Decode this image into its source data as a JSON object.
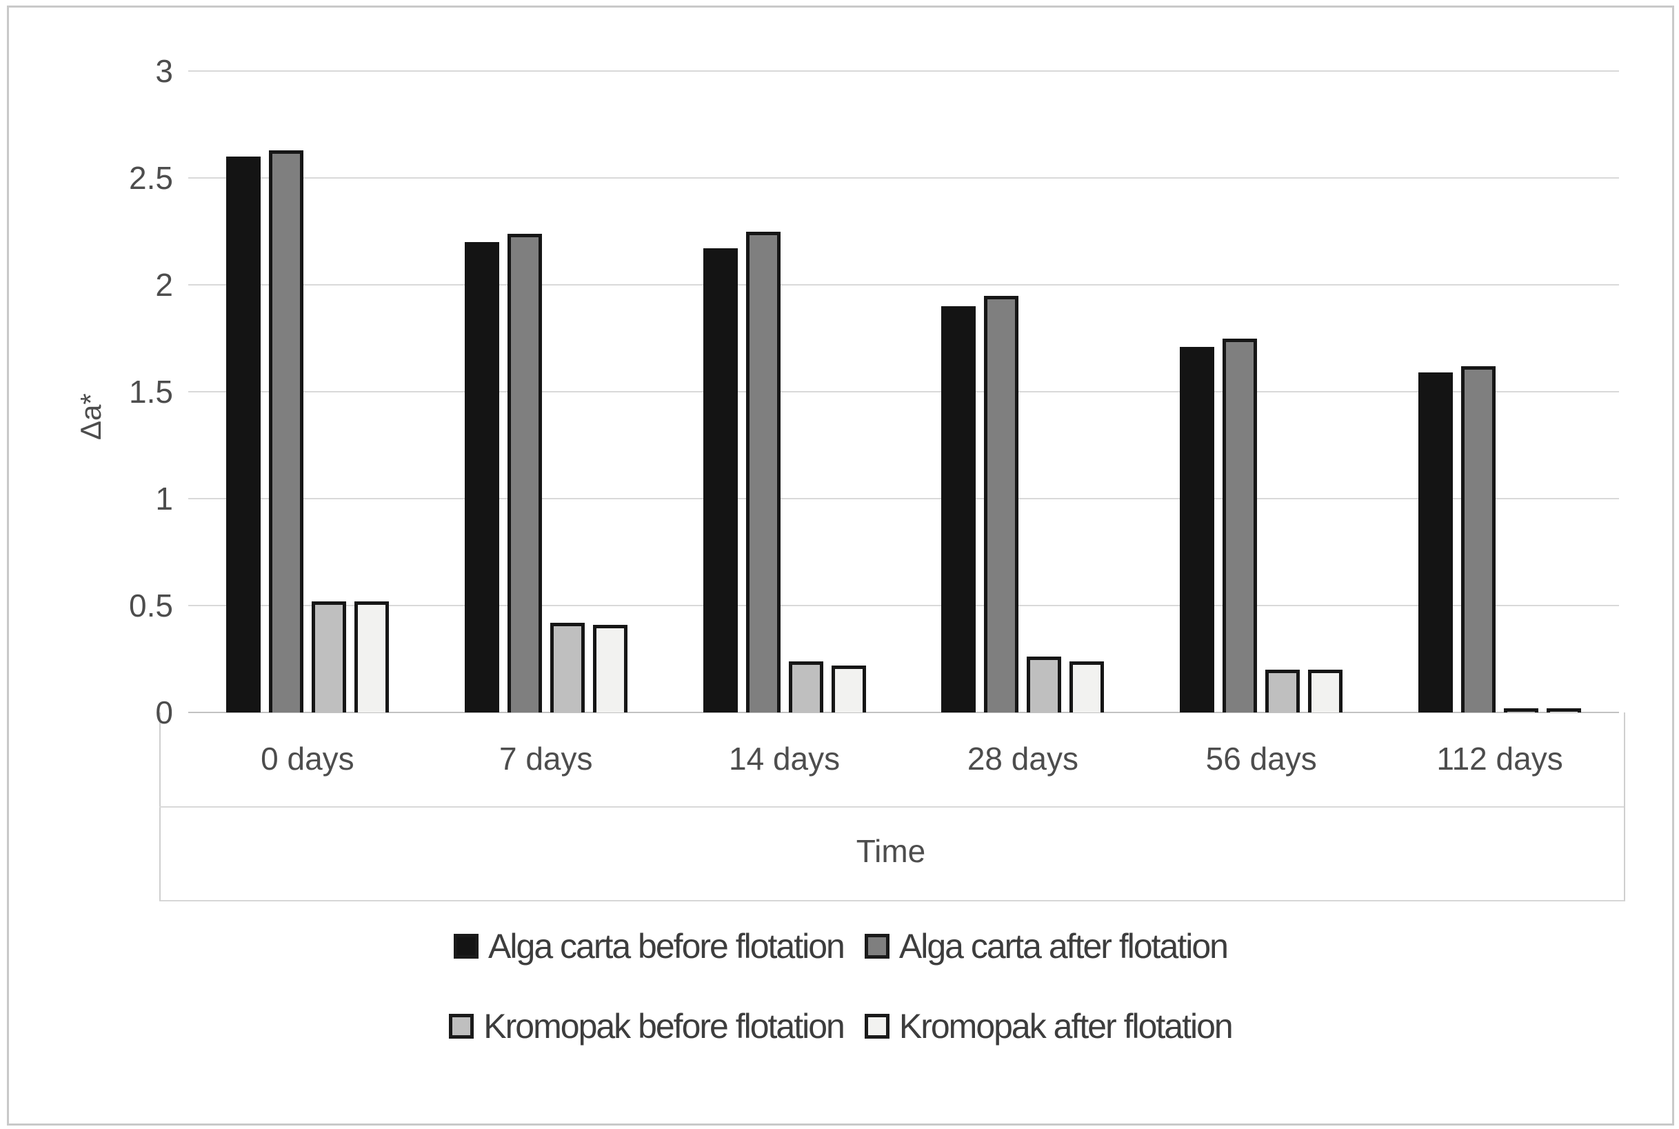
{
  "figure": {
    "background": "#ffffff",
    "frame_color": "#c9c9c9",
    "gridline_color": "#d9d9d9",
    "text_color": "#4d4d4d"
  },
  "chart_data": {
    "type": "bar",
    "title": "",
    "xlabel": "Time",
    "ylabel": "Δa*",
    "ylim": [
      0,
      3
    ],
    "ytick_step": 0.5,
    "ytick_labels": [
      "0",
      "0.5",
      "1",
      "1.5",
      "2",
      "2.5",
      "3"
    ],
    "grid": true,
    "categories": [
      "0 days",
      "7 days",
      "14 days",
      "28 days",
      "56 days",
      "112 days"
    ],
    "series": [
      {
        "name": "Alga carta before flotation",
        "color": "#141414",
        "border_color": "#141414",
        "values": [
          2.6,
          2.2,
          2.17,
          1.9,
          1.71,
          1.59
        ]
      },
      {
        "name": "Alga carta after flotation",
        "color": "#7f7f7f",
        "border_color": "#161616",
        "values": [
          2.63,
          2.24,
          2.25,
          1.95,
          1.75,
          1.62
        ]
      },
      {
        "name": "Kromopak before flotation",
        "color": "#bfbfbf",
        "border_color": "#161616",
        "values": [
          0.52,
          0.42,
          0.24,
          0.26,
          0.2,
          0.02
        ]
      },
      {
        "name": "Kromopak after flotation",
        "color": "#f2f2f0",
        "border_color": "#161616",
        "values": [
          0.52,
          0.41,
          0.22,
          0.24,
          0.2,
          0.02
        ]
      }
    ],
    "legend_position": "bottom",
    "legend_rows": [
      [
        0,
        1
      ],
      [
        2,
        3
      ]
    ]
  }
}
